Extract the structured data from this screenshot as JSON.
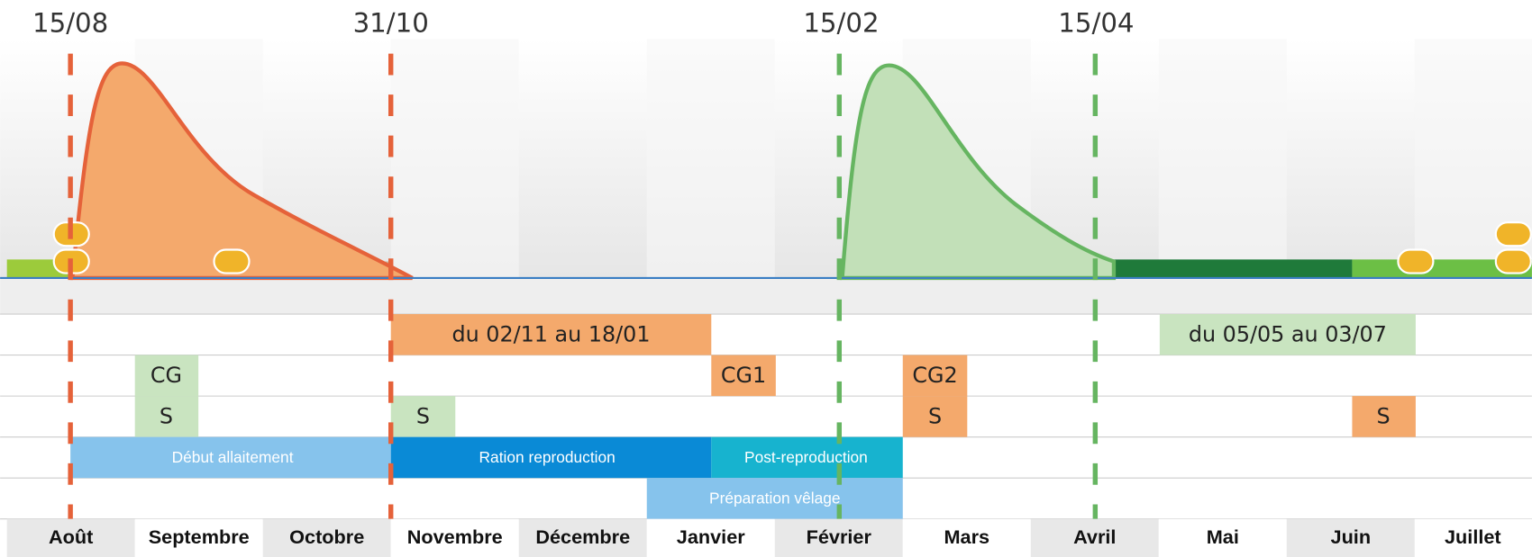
{
  "markers": [
    "15/08",
    "31/10",
    "15/02",
    "15/04"
  ],
  "months": [
    "Août",
    "Septembre",
    "Octobre",
    "Novembre",
    "Décembre",
    "Janvier",
    "Février",
    "Mars",
    "Avril",
    "Mai",
    "Juin",
    "Juillet"
  ],
  "rows": [
    [
      "du 02/11 au 18/01",
      "du 05/05 au 03/07"
    ],
    [
      "CG",
      "CG1",
      "CG2"
    ],
    [
      "S",
      "S",
      "S",
      "S"
    ],
    [
      "Début allaitement",
      "Ration reproduction",
      "Post-reproduction"
    ],
    [
      "Préparation vêlage"
    ]
  ]
}
